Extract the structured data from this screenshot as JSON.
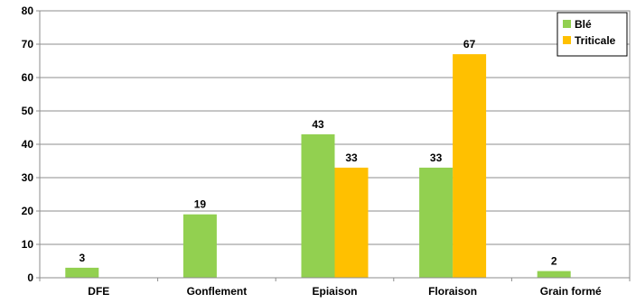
{
  "chart_data": {
    "type": "bar",
    "categories": [
      "DFE",
      "Gonflement",
      "Epiaison",
      "Floraison",
      "Grain formé"
    ],
    "series": [
      {
        "name": "Blé",
        "color": "#92D050",
        "values": [
          3,
          19,
          43,
          33,
          2
        ]
      },
      {
        "name": "Triticale",
        "color": "#FFC000",
        "values": [
          0,
          0,
          33,
          67,
          0
        ]
      }
    ],
    "value_labels": [
      [
        "3",
        "19",
        "43",
        "33",
        "2"
      ],
      [
        "",
        "",
        "33",
        "67",
        ""
      ]
    ],
    "ylim": [
      0,
      80
    ],
    "yticks": [
      0,
      10,
      20,
      30,
      40,
      50,
      60,
      70,
      80
    ],
    "grid": true,
    "legend": "top-right",
    "title": "",
    "xlabel": "",
    "ylabel": ""
  }
}
